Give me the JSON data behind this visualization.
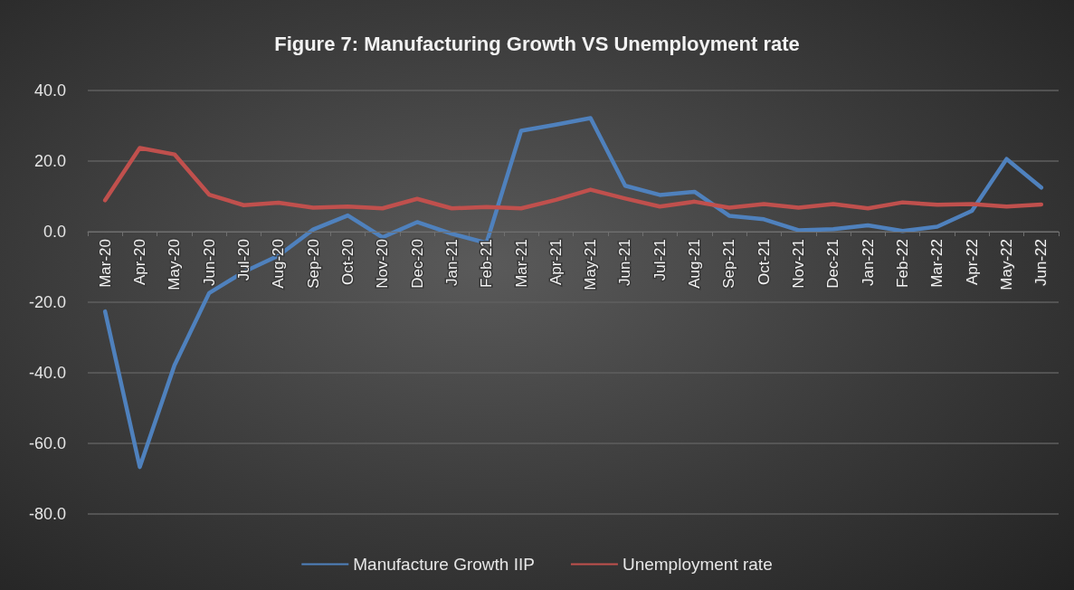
{
  "chart_data": {
    "type": "line",
    "title": "Figure 7: Manufacturing Growth VS Unemployment rate",
    "categories": [
      "Mar-20",
      "Apr-20",
      "May-20",
      "Jun-20",
      "Jul-20",
      "Aug-20",
      "Sep-20",
      "Oct-20",
      "Nov-20",
      "Dec-20",
      "Jan-21",
      "Feb-21",
      "Mar-21",
      "Apr-21",
      "May-21",
      "Jun-21",
      "Jul-21",
      "Aug-21",
      "Sep-21",
      "Oct-21",
      "Nov-21",
      "Dec-21",
      "Jan-22",
      "Feb-22",
      "Mar-22",
      "Apr-22",
      "May-22",
      "Jun-22"
    ],
    "series": [
      {
        "name": "Manufacture Growth IIP",
        "color": "#4f81bd",
        "values": [
          -22.6,
          -66.7,
          -37.9,
          -17.4,
          -11.4,
          -6.8,
          0.6,
          4.6,
          -1.6,
          2.7,
          -0.6,
          -3.2,
          28.6,
          30.3,
          32.2,
          13.0,
          10.4,
          11.3,
          4.5,
          3.5,
          0.4,
          0.7,
          1.8,
          0.2,
          1.4,
          5.9,
          20.6,
          12.5
        ]
      },
      {
        "name": "Unemployment rate",
        "color": "#c0504d",
        "values": [
          8.9,
          23.7,
          21.9,
          10.5,
          7.5,
          8.2,
          6.8,
          7.1,
          6.6,
          9.3,
          6.6,
          7.0,
          6.6,
          9.0,
          11.9,
          9.4,
          7.1,
          8.5,
          6.8,
          7.8,
          6.8,
          7.8,
          6.6,
          8.3,
          7.6,
          7.8,
          7.1,
          7.7
        ]
      }
    ],
    "ylim": [
      -80,
      40
    ],
    "yticks": [
      {
        "value": -80,
        "label": "-80.0"
      },
      {
        "value": -60,
        "label": "-60.0"
      },
      {
        "value": -40,
        "label": "-40.0"
      },
      {
        "value": -20,
        "label": "-20.0"
      },
      {
        "value": 0,
        "label": "0.0"
      },
      {
        "value": 20,
        "label": "20.0"
      },
      {
        "value": 40,
        "label": "40.0"
      }
    ],
    "grid": "y",
    "legend": "bottom",
    "marker": "none",
    "line_style": "solid"
  }
}
